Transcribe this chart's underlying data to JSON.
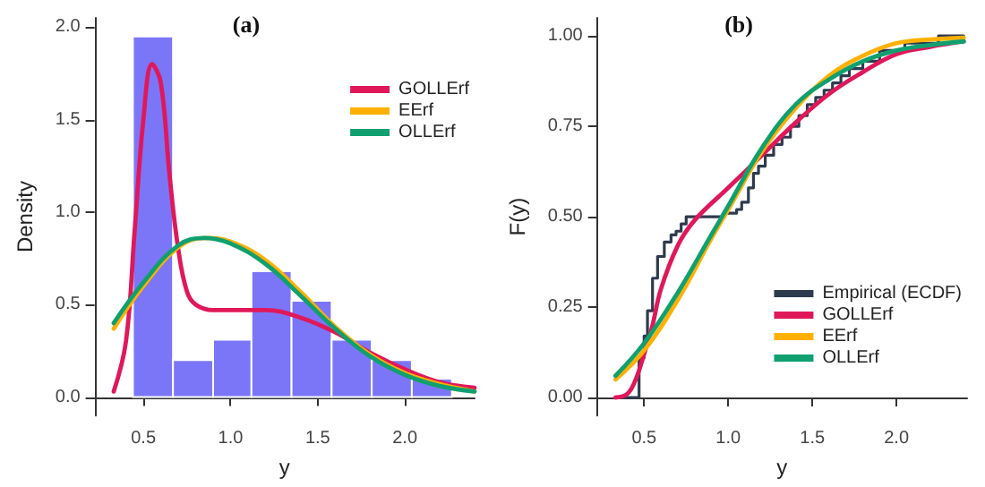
{
  "chart_data": [
    {
      "type": "histogram",
      "title": "(a)",
      "xlabel": "y",
      "ylabel": "Density",
      "bins": [
        0.44,
        0.67,
        0.9,
        1.12,
        1.35,
        1.58,
        1.81,
        2.04,
        2.27
      ],
      "values": [
        1.95,
        0.2,
        0.31,
        0.68,
        0.52,
        0.31,
        0.2,
        0.1
      ],
      "color": "#7b76f7",
      "xlim": [
        0.22,
        2.4
      ],
      "ylim": [
        -0.1,
        2.05
      ],
      "xticks": [
        {
          "value": 0.5,
          "label": "0.5"
        },
        {
          "value": 1,
          "label": "1.0"
        },
        {
          "value": 1.5,
          "label": "1.5"
        },
        {
          "value": 2,
          "label": "2.0"
        }
      ],
      "yticks": [
        {
          "value": 0,
          "label": "0.0"
        },
        {
          "value": 0.5,
          "label": "0.5"
        },
        {
          "value": 1,
          "label": "1.0"
        },
        {
          "value": 1.5,
          "label": "1.5"
        },
        {
          "value": 2,
          "label": "2.0"
        }
      ],
      "grid": false,
      "legend": "top right",
      "series": [
        {
          "type": "line",
          "name": "GOLLErf",
          "color": "#e0185a",
          "x": [
            0.33,
            0.4,
            0.45,
            0.5,
            0.55,
            0.6,
            0.65,
            0.7,
            0.75,
            0.8,
            0.9,
            1.0,
            1.2,
            1.4,
            1.6,
            1.8,
            2.0,
            2.2,
            2.4
          ],
          "values": [
            0.03,
            0.3,
            0.9,
            1.5,
            1.8,
            1.7,
            1.2,
            0.8,
            0.57,
            0.5,
            0.47,
            0.47,
            0.47,
            0.43,
            0.35,
            0.24,
            0.15,
            0.08,
            0.05
          ]
        },
        {
          "type": "line",
          "name": "EErf",
          "color": "#ffb000",
          "x": [
            0.33,
            0.5,
            0.7,
            0.85,
            1.0,
            1.2,
            1.4,
            1.6,
            1.8,
            2.0,
            2.2,
            2.4
          ],
          "values": [
            0.37,
            0.6,
            0.81,
            0.86,
            0.84,
            0.74,
            0.57,
            0.38,
            0.23,
            0.13,
            0.07,
            0.03
          ]
        },
        {
          "type": "line",
          "name": "OLLErf",
          "color": "#10a070",
          "x": [
            0.33,
            0.5,
            0.7,
            0.85,
            1.0,
            1.2,
            1.4,
            1.6,
            1.8,
            2.0,
            2.2,
            2.4
          ],
          "values": [
            0.4,
            0.62,
            0.82,
            0.86,
            0.83,
            0.72,
            0.55,
            0.37,
            0.22,
            0.12,
            0.06,
            0.03
          ]
        }
      ]
    },
    {
      "type": "line",
      "title": "(b)",
      "xlabel": "y",
      "ylabel": "F(y)",
      "xlim": [
        0.22,
        2.42
      ],
      "ylim": [
        -0.05,
        1.05
      ],
      "xticks": [
        {
          "value": 0.5,
          "label": "0.5"
        },
        {
          "value": 1,
          "label": "1.0"
        },
        {
          "value": 1.5,
          "label": "1.5"
        },
        {
          "value": 2,
          "label": "2.0"
        }
      ],
      "yticks": [
        {
          "value": 0,
          "label": "0.00"
        },
        {
          "value": 0.25,
          "label": "0.25"
        },
        {
          "value": 0.5,
          "label": "0.50"
        },
        {
          "value": 0.75,
          "label": "0.75"
        },
        {
          "value": 1,
          "label": "1.00"
        }
      ],
      "grid": false,
      "legend": "bottom right",
      "series": [
        {
          "type": "step",
          "name": "Empirical (ECDF)",
          "color": "#2e3b4e",
          "x": [
            0.33,
            0.47,
            0.5,
            0.52,
            0.55,
            0.58,
            0.62,
            0.66,
            0.69,
            0.72,
            0.75,
            0.98,
            1.05,
            1.08,
            1.12,
            1.15,
            1.18,
            1.22,
            1.27,
            1.32,
            1.37,
            1.42,
            1.47,
            1.52,
            1.57,
            1.62,
            1.67,
            1.72,
            1.8,
            1.9,
            2.05,
            2.25,
            2.4
          ],
          "values": [
            0,
            0.11,
            0.17,
            0.24,
            0.33,
            0.39,
            0.43,
            0.45,
            0.46,
            0.48,
            0.5,
            0.51,
            0.52,
            0.54,
            0.58,
            0.62,
            0.64,
            0.67,
            0.7,
            0.72,
            0.75,
            0.78,
            0.81,
            0.83,
            0.85,
            0.87,
            0.89,
            0.91,
            0.93,
            0.96,
            0.98,
            1,
            1
          ]
        },
        {
          "type": "line",
          "name": "GOLLErf",
          "color": "#e0185a",
          "x": [
            0.33,
            0.4,
            0.45,
            0.5,
            0.55,
            0.6,
            0.7,
            0.8,
            1.0,
            1.2,
            1.4,
            1.6,
            1.8,
            2.0,
            2.2,
            2.4
          ],
          "values": [
            0,
            0.01,
            0.05,
            0.12,
            0.2,
            0.3,
            0.42,
            0.49,
            0.58,
            0.67,
            0.76,
            0.84,
            0.9,
            0.95,
            0.97,
            0.985
          ]
        },
        {
          "type": "line",
          "name": "EErf",
          "color": "#ffb000",
          "x": [
            0.33,
            0.5,
            0.7,
            0.9,
            1.0,
            1.2,
            1.4,
            1.6,
            1.8,
            2.0,
            2.2,
            2.4
          ],
          "values": [
            0.05,
            0.13,
            0.27,
            0.44,
            0.52,
            0.68,
            0.8,
            0.89,
            0.945,
            0.98,
            0.99,
            0.995
          ]
        },
        {
          "type": "line",
          "name": "OLLErf",
          "color": "#10a070",
          "x": [
            0.33,
            0.5,
            0.7,
            0.9,
            1.0,
            1.2,
            1.4,
            1.6,
            1.8,
            2.0,
            2.2,
            2.4
          ],
          "values": [
            0.06,
            0.15,
            0.29,
            0.45,
            0.53,
            0.69,
            0.81,
            0.88,
            0.93,
            0.96,
            0.975,
            0.985
          ]
        }
      ]
    }
  ]
}
